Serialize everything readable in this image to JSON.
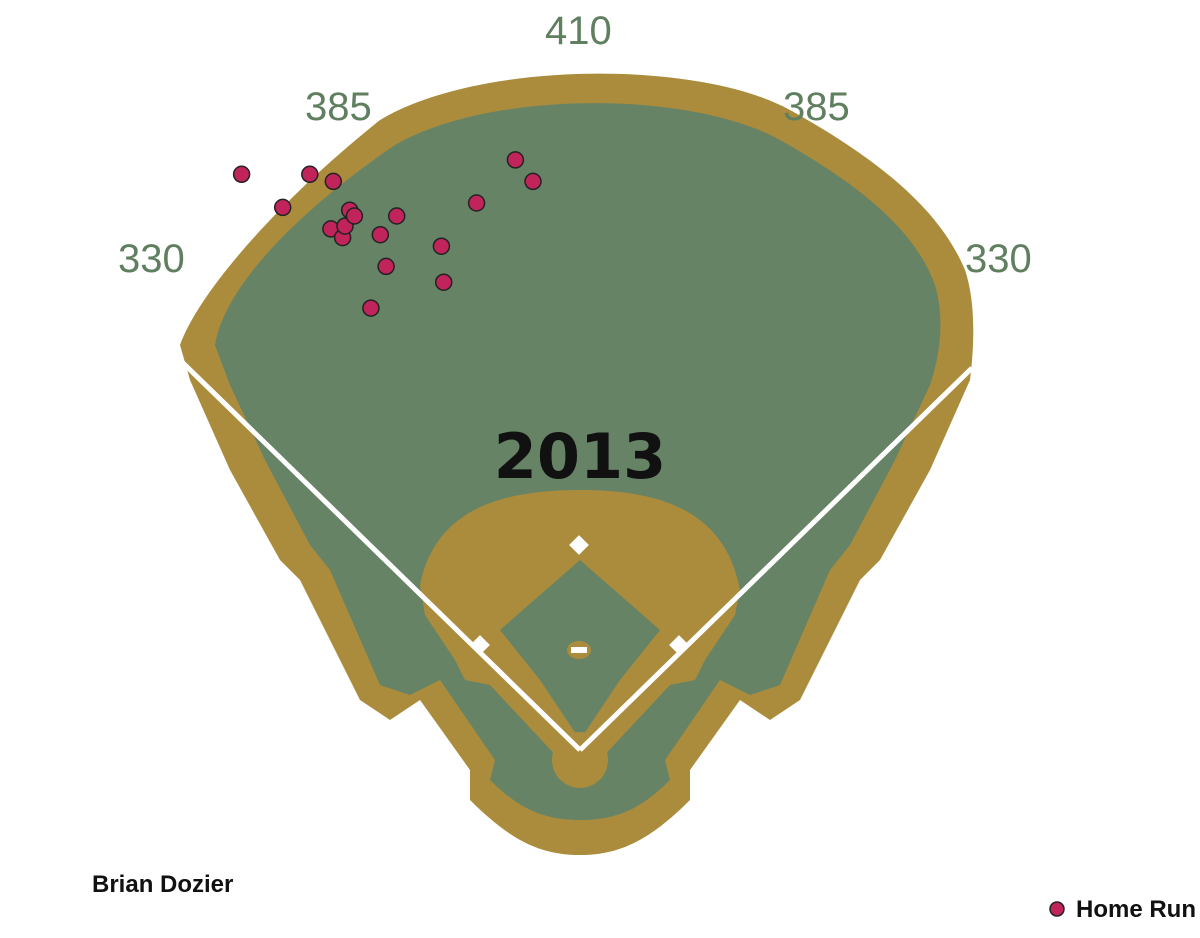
{
  "chart_data": {
    "type": "scatter",
    "title": "2013",
    "subtitle": "Brian Dozier",
    "legend": {
      "entries": [
        {
          "label": "Home Run",
          "color": "#c0245a"
        }
      ],
      "placement": "bottom-right"
    },
    "annotations": [
      "330",
      "385",
      "410",
      "385",
      "330"
    ],
    "series": [
      {
        "name": "Home Run",
        "points": [
          {
            "x": -288,
            "y": 400
          },
          {
            "x": -253,
            "y": 377
          },
          {
            "x": -230,
            "y": 400
          },
          {
            "x": -212,
            "y": 362
          },
          {
            "x": -210,
            "y": 395
          },
          {
            "x": -202,
            "y": 356
          },
          {
            "x": -200,
            "y": 364
          },
          {
            "x": -196,
            "y": 375
          },
          {
            "x": -192,
            "y": 371
          },
          {
            "x": -178,
            "y": 307
          },
          {
            "x": -170,
            "y": 358
          },
          {
            "x": -165,
            "y": 336
          },
          {
            "x": -156,
            "y": 371
          },
          {
            "x": -118,
            "y": 350
          },
          {
            "x": -116,
            "y": 325
          },
          {
            "x": -88,
            "y": 380
          },
          {
            "x": -55,
            "y": 410
          },
          {
            "x": -40,
            "y": 395
          }
        ]
      }
    ],
    "colors": {
      "grass": "#668366",
      "dirt": "#aa8c3c",
      "lines": "#ffffff",
      "distance_text": "#5f7f5f",
      "marker": "#c0245a"
    }
  }
}
